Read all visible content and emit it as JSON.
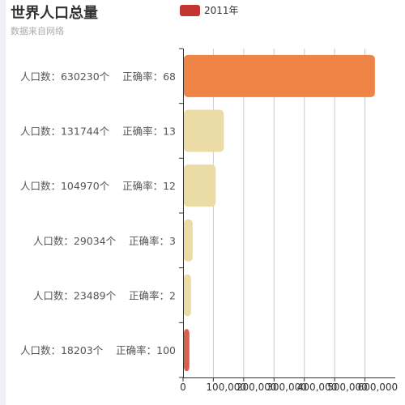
{
  "title": "世界人口总量",
  "subtitle": "数据来自网络",
  "legend": {
    "label": "2011年",
    "color": "#c23531"
  },
  "chart_data": {
    "type": "bar",
    "orientation": "horizontal",
    "title": "世界人口总量",
    "subtitle": "数据来自网络",
    "categories": [
      "人口数：18203个    正确率：100",
      "人口数：23489个    正确率：2",
      "人口数：29034个    正确率：3",
      "人口数：104970个    正确率：12",
      "人口数：131744个    正确率：13",
      "人口数：630230个    正确率：68"
    ],
    "series": [
      {
        "name": "2011年",
        "values": [
          18203,
          23489,
          29034,
          104970,
          131744,
          630230
        ]
      }
    ],
    "bar_colors": [
      "#d95f4f",
      "#ebdba4",
      "#ebdba4",
      "#ebdba4",
      "#ebdba4",
      "#ee8446"
    ],
    "xlim": [
      0,
      700000
    ],
    "xticks": [
      "0",
      "100,000",
      "200,000",
      "300,000",
      "400,000",
      "500,000",
      "600,000"
    ],
    "xtick_values": [
      0,
      100000,
      200000,
      300000,
      400000,
      500000,
      600000
    ],
    "grid": "vertical",
    "legend_position": "top"
  }
}
